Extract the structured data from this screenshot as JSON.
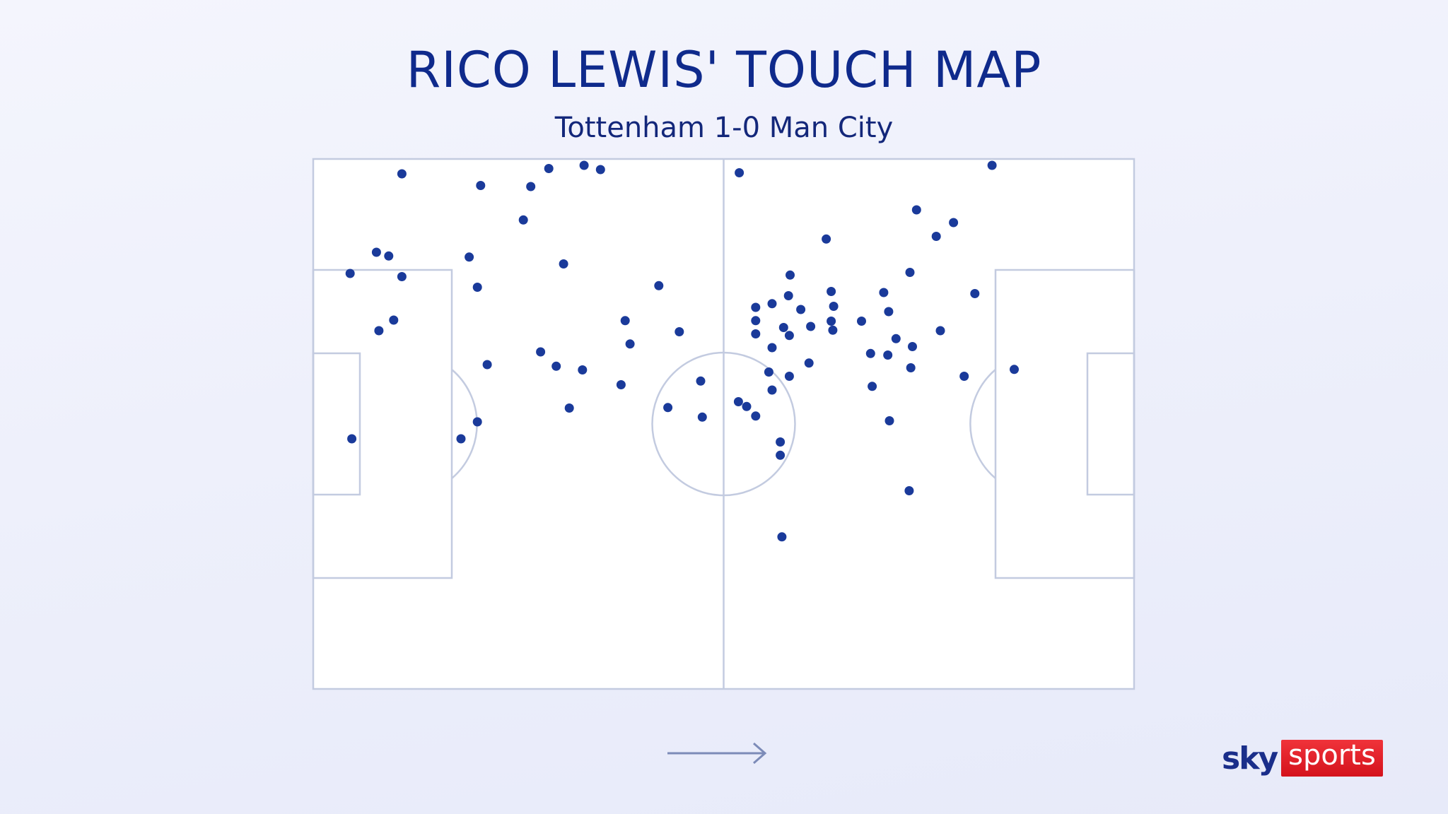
{
  "header": {
    "title": "RICO LEWIS' TOUCH MAP",
    "subtitle": "Tottenham 1-0 Man City"
  },
  "logo": {
    "sky_text": "sky",
    "sports_text": "sports",
    "sky_color": "#1a2e8a",
    "sports_bg_color": "#e31b23"
  },
  "colors": {
    "title": "#0f2a8c",
    "touch": "#1a3a9a",
    "pitch_lines": "#c3cbe0",
    "pitch_fill": "#ffffff",
    "arrow": "#7c8bb8"
  },
  "icons": {
    "direction": "arrow-right-icon"
  },
  "chart_data": {
    "type": "scatter",
    "title": "RICO LEWIS' TOUCH MAP",
    "subtitle": "Tottenham 1-0 Man City",
    "xlabel": "",
    "ylabel": "",
    "xlim": [
      0,
      100
    ],
    "ylim": [
      0,
      100
    ],
    "grid": false,
    "legend": "none",
    "attack_direction": "left-to-right",
    "points": [
      {
        "x": 10.8,
        "y": 2.8
      },
      {
        "x": 20.4,
        "y": 5.0
      },
      {
        "x": 26.5,
        "y": 5.2
      },
      {
        "x": 28.7,
        "y": 1.8
      },
      {
        "x": 33.0,
        "y": 1.2
      },
      {
        "x": 35.0,
        "y": 2.0
      },
      {
        "x": 25.6,
        "y": 11.5
      },
      {
        "x": 51.9,
        "y": 2.6
      },
      {
        "x": 82.7,
        "y": 1.2
      },
      {
        "x": 73.5,
        "y": 9.6
      },
      {
        "x": 78.0,
        "y": 12.0
      },
      {
        "x": 75.9,
        "y": 14.6
      },
      {
        "x": 62.5,
        "y": 15.1
      },
      {
        "x": 7.7,
        "y": 17.6
      },
      {
        "x": 9.2,
        "y": 18.3
      },
      {
        "x": 19.0,
        "y": 18.5
      },
      {
        "x": 30.5,
        "y": 19.8
      },
      {
        "x": 4.5,
        "y": 21.6
      },
      {
        "x": 10.8,
        "y": 22.2
      },
      {
        "x": 20.0,
        "y": 24.2
      },
      {
        "x": 42.1,
        "y": 23.9
      },
      {
        "x": 58.1,
        "y": 21.9
      },
      {
        "x": 72.7,
        "y": 21.4
      },
      {
        "x": 57.9,
        "y": 25.8
      },
      {
        "x": 63.1,
        "y": 25.0
      },
      {
        "x": 69.5,
        "y": 25.2
      },
      {
        "x": 80.6,
        "y": 25.4
      },
      {
        "x": 53.9,
        "y": 28.0
      },
      {
        "x": 55.9,
        "y": 27.3
      },
      {
        "x": 59.4,
        "y": 28.4
      },
      {
        "x": 63.4,
        "y": 27.8
      },
      {
        "x": 70.1,
        "y": 28.8
      },
      {
        "x": 9.8,
        "y": 30.4
      },
      {
        "x": 38.0,
        "y": 30.5
      },
      {
        "x": 53.9,
        "y": 30.5
      },
      {
        "x": 57.3,
        "y": 31.8
      },
      {
        "x": 60.6,
        "y": 31.6
      },
      {
        "x": 63.1,
        "y": 30.6
      },
      {
        "x": 66.8,
        "y": 30.6
      },
      {
        "x": 63.3,
        "y": 32.3
      },
      {
        "x": 8.0,
        "y": 32.4
      },
      {
        "x": 44.6,
        "y": 32.6
      },
      {
        "x": 53.9,
        "y": 33.0
      },
      {
        "x": 58.0,
        "y": 33.3
      },
      {
        "x": 76.4,
        "y": 32.4
      },
      {
        "x": 38.6,
        "y": 34.9
      },
      {
        "x": 55.9,
        "y": 35.6
      },
      {
        "x": 71.0,
        "y": 33.9
      },
      {
        "x": 73.0,
        "y": 35.4
      },
      {
        "x": 27.7,
        "y": 36.4
      },
      {
        "x": 67.9,
        "y": 36.7
      },
      {
        "x": 70.0,
        "y": 37.0
      },
      {
        "x": 21.2,
        "y": 38.8
      },
      {
        "x": 29.6,
        "y": 39.1
      },
      {
        "x": 32.8,
        "y": 39.8
      },
      {
        "x": 60.4,
        "y": 38.5
      },
      {
        "x": 72.8,
        "y": 39.4
      },
      {
        "x": 55.5,
        "y": 40.2
      },
      {
        "x": 58.0,
        "y": 41.0
      },
      {
        "x": 79.3,
        "y": 41.0
      },
      {
        "x": 85.4,
        "y": 39.7
      },
      {
        "x": 37.5,
        "y": 42.6
      },
      {
        "x": 47.2,
        "y": 41.9
      },
      {
        "x": 68.1,
        "y": 42.9
      },
      {
        "x": 55.9,
        "y": 43.6
      },
      {
        "x": 31.2,
        "y": 47.0
      },
      {
        "x": 43.2,
        "y": 46.9
      },
      {
        "x": 51.8,
        "y": 45.8
      },
      {
        "x": 52.8,
        "y": 46.7
      },
      {
        "x": 47.4,
        "y": 48.7
      },
      {
        "x": 53.9,
        "y": 48.5
      },
      {
        "x": 20.0,
        "y": 49.6
      },
      {
        "x": 70.2,
        "y": 49.4
      },
      {
        "x": 4.7,
        "y": 52.8
      },
      {
        "x": 18.0,
        "y": 52.8
      },
      {
        "x": 56.9,
        "y": 53.4
      },
      {
        "x": 56.9,
        "y": 55.9
      },
      {
        "x": 72.6,
        "y": 62.6
      },
      {
        "x": 57.1,
        "y": 71.3
      }
    ]
  }
}
